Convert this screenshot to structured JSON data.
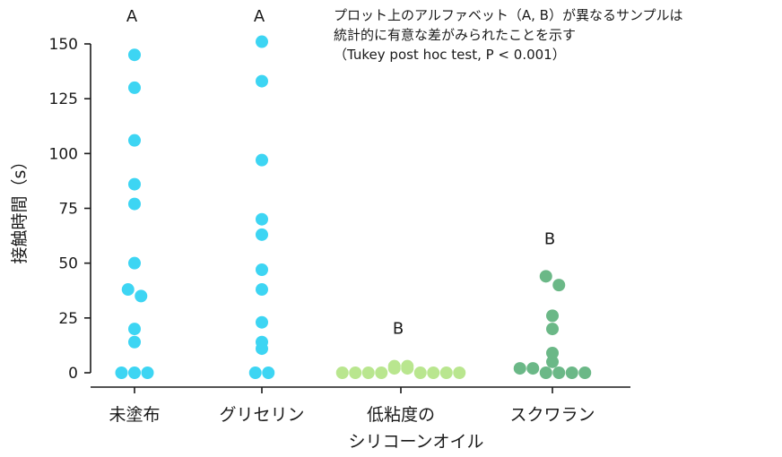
{
  "note": {
    "line1": "プロット上のアルファベット（A, B）が異なるサンプルは",
    "line2": "統計的に有意な差がみられたことを示す",
    "line3": "（Tukey post hoc test, P < 0.001）"
  },
  "chart_data": {
    "type": "scatter",
    "title": "",
    "ylabel": "接触時間（s）",
    "xlabel": "",
    "ylim": [
      0,
      150
    ],
    "yticks": [
      0,
      25,
      50,
      75,
      100,
      125,
      150
    ],
    "ytick_labels": [
      "0",
      "25",
      "50",
      "75",
      "100",
      "125",
      "150"
    ],
    "categories": [
      {
        "label": "未塗布",
        "label2": ""
      },
      {
        "label": "グリセリン",
        "label2": ""
      },
      {
        "label": "低粘度の",
        "label2": "シリコーンオイル"
      },
      {
        "label": "スクワラン",
        "label2": ""
      }
    ],
    "grid": false,
    "series": [
      {
        "category": "未塗布",
        "group": "A",
        "color": "#3dd5f3",
        "values": [
          145,
          130,
          106,
          86,
          77,
          50,
          38,
          35,
          20,
          14,
          0,
          0,
          0
        ]
      },
      {
        "category": "グリセリン",
        "group": "A",
        "color": "#3dd5f3",
        "values": [
          151,
          133,
          97,
          70,
          63,
          47,
          38,
          23,
          14,
          11,
          0,
          0
        ]
      },
      {
        "category": "低粘度のシリコーンオイル",
        "group": "B",
        "color": "#b9e68f",
        "values": [
          0,
          0,
          0,
          3,
          0,
          2,
          3,
          2,
          0,
          0,
          0,
          0
        ]
      },
      {
        "category": "スクワラン",
        "group": "B",
        "color": "#6bb887",
        "values": [
          44,
          40,
          26,
          20,
          9,
          5,
          2,
          2,
          0,
          0,
          0,
          0
        ]
      }
    ]
  }
}
